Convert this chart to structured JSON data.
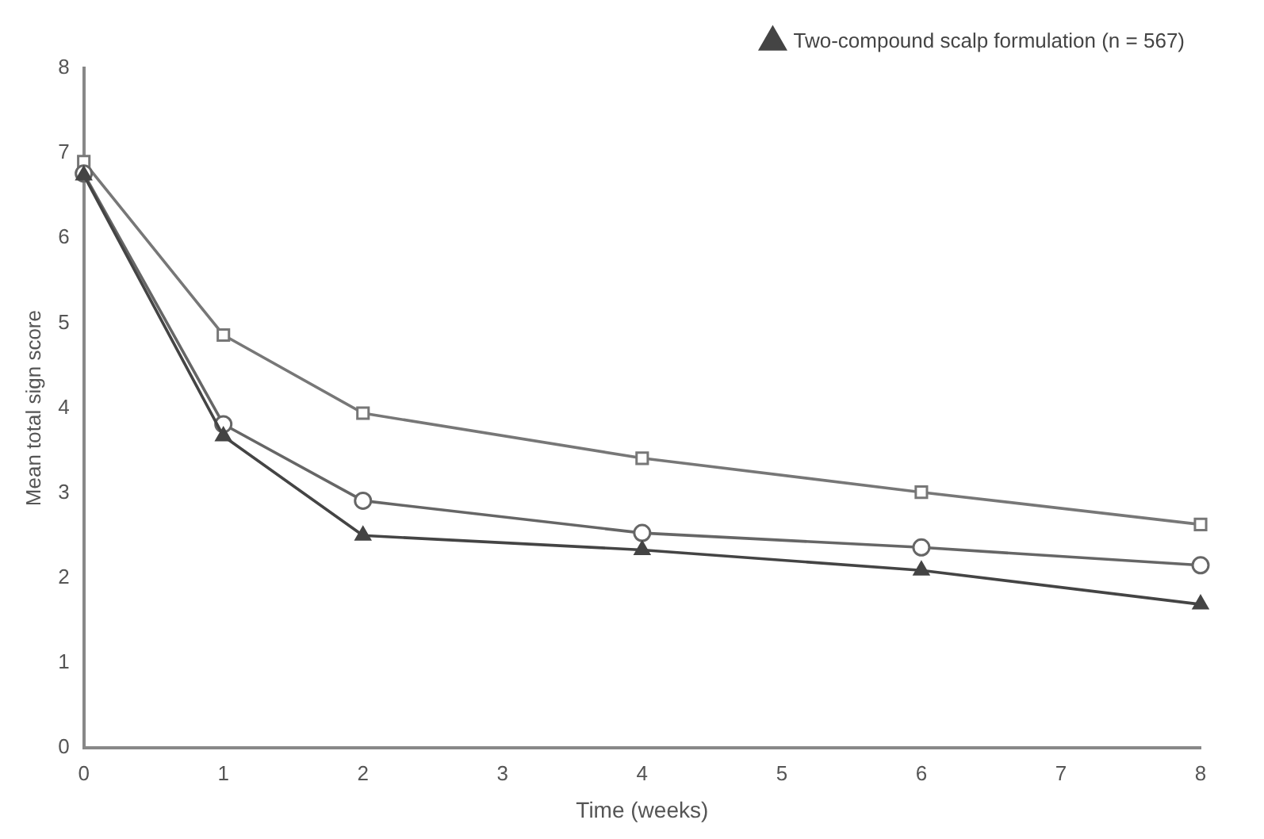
{
  "chart_data": {
    "type": "line",
    "xlabel": "Time (weeks)",
    "ylabel": "Mean total sign score",
    "xlim": [
      0,
      8
    ],
    "xticks": [
      0,
      1,
      2,
      3,
      4,
      5,
      6,
      7,
      8
    ],
    "ylim": [
      0,
      8
    ],
    "yticks": [
      0,
      1,
      2,
      3,
      4,
      5,
      6,
      7,
      8
    ],
    "x": [
      0,
      1,
      2,
      4,
      6,
      8
    ],
    "legend": "top right",
    "grid": false,
    "line_style": "solid",
    "series": [
      {
        "name": "Two-compound scalp formulation (n = 567)",
        "color": "#444444",
        "marker": "triangle",
        "values": [
          6.74,
          3.67,
          2.5,
          2.33,
          2.09,
          1.69
        ]
      },
      {
        "color": "#666666",
        "marker": "circle",
        "values": [
          6.76,
          3.81,
          2.91,
          2.53,
          2.36,
          2.15
        ]
      },
      {
        "color": "#777777",
        "marker": "square",
        "values": [
          6.9,
          4.86,
          3.94,
          3.41,
          3.01,
          2.63
        ]
      }
    ]
  }
}
